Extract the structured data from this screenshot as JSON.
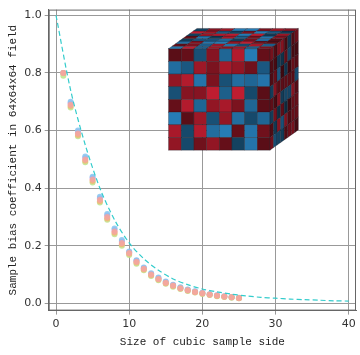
{
  "chart_data": {
    "type": "scatter",
    "x_label": "Size of cubic sample side",
    "y_label": "Sample bias coefficient in 64x64x64 field",
    "xlim": [
      -1,
      41
    ],
    "xticks": [
      0,
      10,
      20,
      30,
      40
    ],
    "ylim": [
      -0.025,
      1.02
    ],
    "yticks": [
      {
        "value": 0,
        "label": "0.0"
      },
      {
        "value": 0.2,
        "label": "0.2"
      },
      {
        "value": 0.4,
        "label": "0.4"
      },
      {
        "value": 0.6,
        "label": "0.6"
      },
      {
        "value": 0.8,
        "label": "0.8"
      },
      {
        "value": 1,
        "label": "1.0"
      }
    ],
    "grid": true,
    "series": [
      {
        "type": "scatter",
        "marker": "circle",
        "color": "#f4a3a3",
        "x": [
          1,
          2,
          3,
          4,
          5,
          6,
          7,
          8,
          9,
          10,
          11,
          12,
          13,
          14,
          15,
          16,
          17,
          18,
          19,
          20,
          21,
          22,
          23,
          24,
          25
        ],
        "values": [
          0.8,
          0.69,
          0.59,
          0.5,
          0.43,
          0.36,
          0.3,
          0.25,
          0.21,
          0.175,
          0.145,
          0.12,
          0.1,
          0.085,
          0.072,
          0.062,
          0.053,
          0.046,
          0.04,
          0.035,
          0.031,
          0.027,
          0.024,
          0.021,
          0.019
        ]
      },
      {
        "type": "scatter",
        "marker": "circle",
        "color": "#f2b676",
        "x": [
          1,
          2,
          3,
          4,
          5,
          6,
          7,
          8,
          9,
          10,
          11,
          12,
          13,
          14,
          15,
          16,
          17,
          18,
          19,
          20,
          21,
          22,
          23,
          24,
          25
        ],
        "values": [
          0.8,
          0.685,
          0.585,
          0.495,
          0.425,
          0.355,
          0.295,
          0.245,
          0.205,
          0.172,
          0.142,
          0.118,
          0.098,
          0.083,
          0.07,
          0.06,
          0.052,
          0.045,
          0.039,
          0.034,
          0.03,
          0.026,
          0.023,
          0.021,
          0.018
        ]
      },
      {
        "type": "scatter",
        "marker": "circle",
        "color": "#bde38a",
        "x": [
          1,
          2,
          3,
          4,
          5,
          6,
          7,
          8,
          9,
          10,
          11,
          12,
          13,
          14,
          15,
          16,
          17,
          18,
          19,
          20,
          21,
          22,
          23,
          24,
          25
        ],
        "values": [
          0.79,
          0.68,
          0.58,
          0.49,
          0.42,
          0.35,
          0.29,
          0.24,
          0.2,
          0.168,
          0.138,
          0.115,
          0.095,
          0.08,
          0.068,
          0.058,
          0.05,
          0.043,
          0.038,
          0.033,
          0.029,
          0.025,
          0.022,
          0.02,
          0.018
        ]
      },
      {
        "type": "scatter",
        "marker": "circle",
        "color": "#86c4f0",
        "x": [
          1,
          2,
          3,
          4,
          5,
          6,
          7,
          8,
          9,
          10,
          11,
          12,
          13,
          14,
          15,
          16,
          17,
          18,
          19,
          20,
          21,
          22,
          23,
          24,
          25
        ],
        "values": [
          0.8,
          0.7,
          0.6,
          0.51,
          0.44,
          0.37,
          0.31,
          0.26,
          0.22,
          0.18,
          0.15,
          0.125,
          0.105,
          0.09,
          0.076,
          0.065,
          0.056,
          0.048,
          0.042,
          0.037,
          0.032,
          0.028,
          0.025,
          0.022,
          0.02
        ]
      },
      {
        "type": "scatter",
        "marker": "circle",
        "color": "#c7a6f2",
        "x": [
          1,
          2,
          3,
          4,
          5,
          6,
          7,
          8,
          9,
          10,
          11,
          12,
          13,
          14,
          15,
          16,
          17,
          18,
          19,
          20,
          21,
          22,
          23,
          24,
          25
        ],
        "values": [
          0.8,
          0.695,
          0.595,
          0.505,
          0.435,
          0.365,
          0.305,
          0.255,
          0.215,
          0.178,
          0.148,
          0.122,
          0.102,
          0.087,
          0.074,
          0.063,
          0.054,
          0.047,
          0.041,
          0.036,
          0.031,
          0.027,
          0.024,
          0.021,
          0.019
        ]
      },
      {
        "type": "line",
        "line_style": "dashed",
        "color": "#33cccc",
        "x": [
          0,
          2,
          4,
          6,
          8,
          10,
          12,
          14,
          16,
          18,
          20,
          22,
          24,
          26,
          28,
          30,
          32,
          34,
          36,
          38,
          40
        ],
        "values": [
          1.0,
          0.74,
          0.55,
          0.4,
          0.29,
          0.21,
          0.155,
          0.115,
          0.085,
          0.065,
          0.05,
          0.04,
          0.032,
          0.026,
          0.021,
          0.018,
          0.015,
          0.013,
          0.011,
          0.009,
          0.008
        ]
      }
    ]
  }
}
